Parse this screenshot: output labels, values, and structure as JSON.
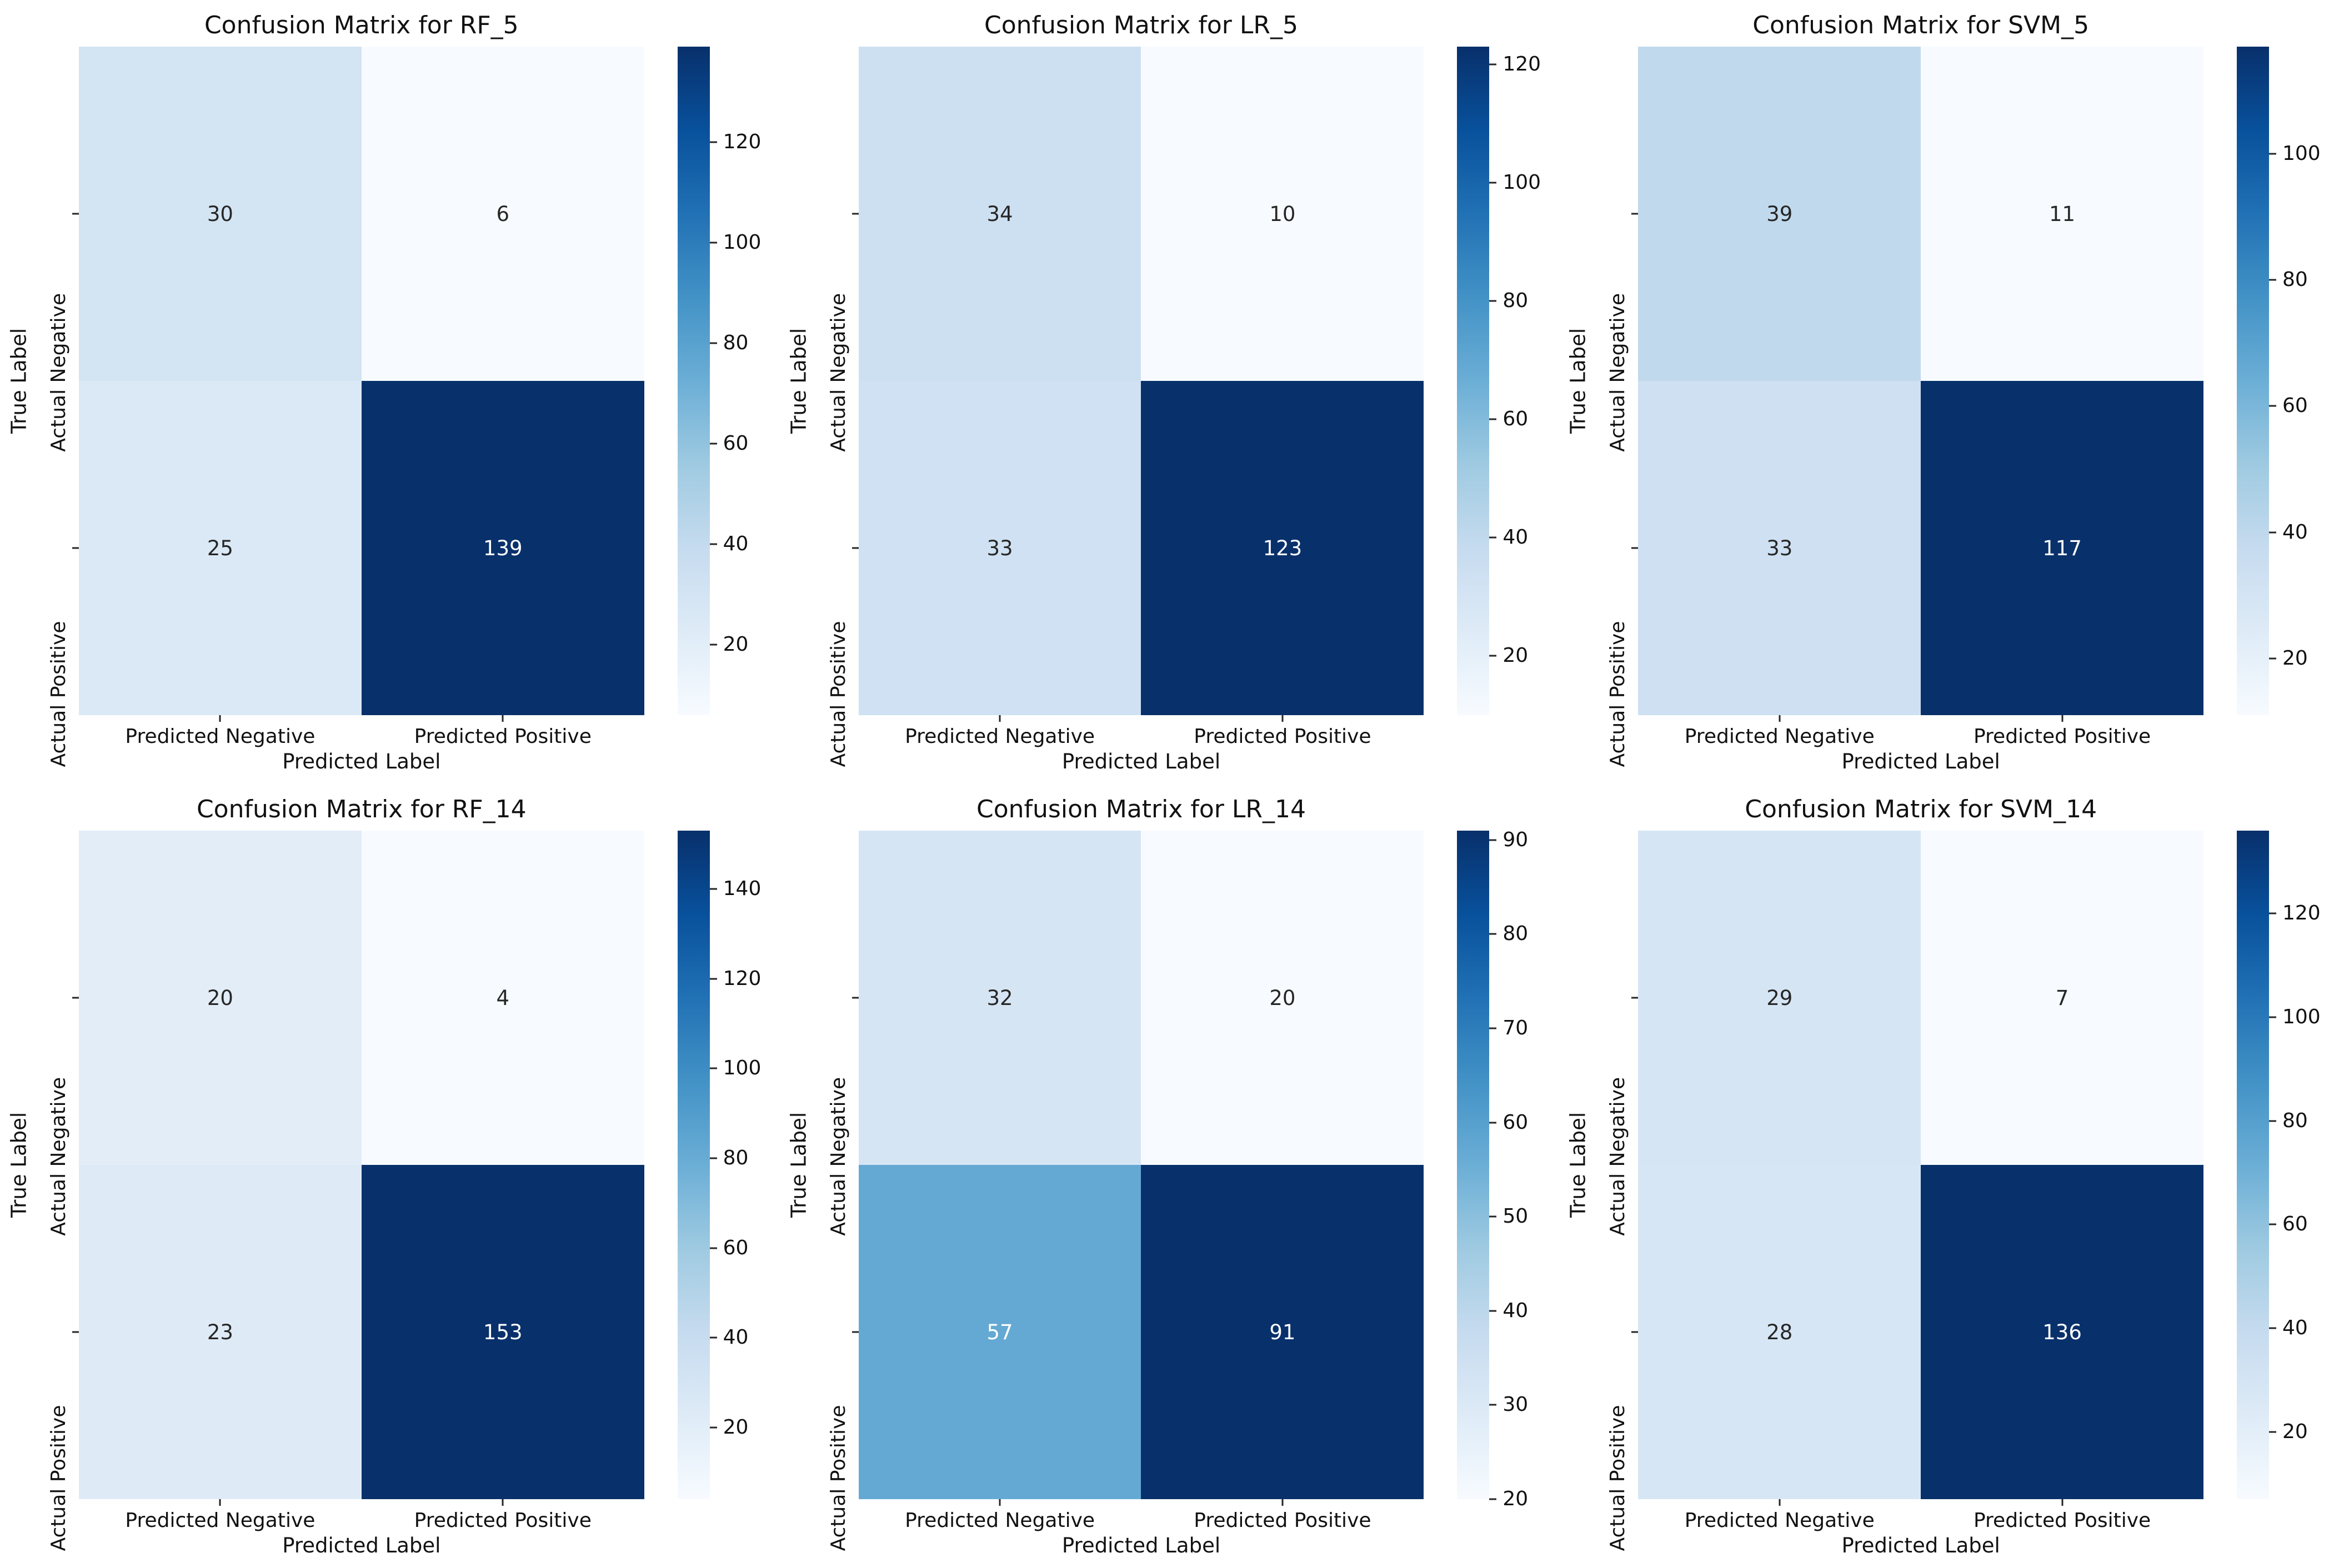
{
  "figure": {
    "background": "#ffffff",
    "colormap_name": "Blues",
    "colormap_stops": [
      "#f7fbff",
      "#deebf7",
      "#c6dbef",
      "#9ecae1",
      "#6baed6",
      "#4292c6",
      "#2171b5",
      "#08519c",
      "#08306b"
    ],
    "annotation_dark_text": "#262626",
    "annotation_light_text": "#ffffff",
    "tick_color": "#262626",
    "text_color": "#111111"
  },
  "chart_data": [
    {
      "type": "heatmap",
      "model": "RF_5",
      "title": "Confusion Matrix for RF_5",
      "xlabel": "Predicted Label",
      "ylabel": "True Label",
      "x_categories": [
        "Predicted Negative",
        "Predicted Positive"
      ],
      "y_categories": [
        "Actual Negative",
        "Actual Positive"
      ],
      "values": [
        [
          30,
          6
        ],
        [
          25,
          139
        ]
      ],
      "vmin": 6,
      "vmax": 139,
      "colorbar_ticks": [
        20,
        40,
        60,
        80,
        100,
        120
      ],
      "legend_position": "right",
      "grid": false
    },
    {
      "type": "heatmap",
      "model": "LR_5",
      "title": "Confusion Matrix for LR_5",
      "xlabel": "Predicted Label",
      "ylabel": "True Label",
      "x_categories": [
        "Predicted Negative",
        "Predicted Positive"
      ],
      "y_categories": [
        "Actual Negative",
        "Actual Positive"
      ],
      "values": [
        [
          34,
          10
        ],
        [
          33,
          123
        ]
      ],
      "vmin": 10,
      "vmax": 123,
      "colorbar_ticks": [
        20,
        40,
        60,
        80,
        100,
        120
      ],
      "legend_position": "right",
      "grid": false
    },
    {
      "type": "heatmap",
      "model": "SVM_5",
      "title": "Confusion Matrix for SVM_5",
      "xlabel": "Predicted Label",
      "ylabel": "True Label",
      "x_categories": [
        "Predicted Negative",
        "Predicted Positive"
      ],
      "y_categories": [
        "Actual Negative",
        "Actual Positive"
      ],
      "values": [
        [
          39,
          11
        ],
        [
          33,
          117
        ]
      ],
      "vmin": 11,
      "vmax": 117,
      "colorbar_ticks": [
        20,
        40,
        60,
        80,
        100
      ],
      "legend_position": "right",
      "grid": false
    },
    {
      "type": "heatmap",
      "model": "RF_14",
      "title": "Confusion Matrix for RF_14",
      "xlabel": "Predicted Label",
      "ylabel": "True Label",
      "x_categories": [
        "Predicted Negative",
        "Predicted Positive"
      ],
      "y_categories": [
        "Actual Negative",
        "Actual Positive"
      ],
      "values": [
        [
          20,
          4
        ],
        [
          23,
          153
        ]
      ],
      "vmin": 4,
      "vmax": 153,
      "colorbar_ticks": [
        20,
        40,
        60,
        80,
        100,
        120,
        140
      ],
      "legend_position": "right",
      "grid": false
    },
    {
      "type": "heatmap",
      "model": "LR_14",
      "title": "Confusion Matrix for LR_14",
      "xlabel": "Predicted Label",
      "ylabel": "True Label",
      "x_categories": [
        "Predicted Negative",
        "Predicted Positive"
      ],
      "y_categories": [
        "Actual Negative",
        "Actual Positive"
      ],
      "values": [
        [
          32,
          20
        ],
        [
          57,
          91
        ]
      ],
      "vmin": 20,
      "vmax": 91,
      "colorbar_ticks": [
        20,
        30,
        40,
        50,
        60,
        70,
        80,
        90
      ],
      "legend_position": "right",
      "grid": false
    },
    {
      "type": "heatmap",
      "model": "SVM_14",
      "title": "Confusion Matrix for SVM_14",
      "xlabel": "Predicted Label",
      "ylabel": "True Label",
      "x_categories": [
        "Predicted Negative",
        "Predicted Positive"
      ],
      "y_categories": [
        "Actual Negative",
        "Actual Positive"
      ],
      "values": [
        [
          29,
          7
        ],
        [
          28,
          136
        ]
      ],
      "vmin": 7,
      "vmax": 136,
      "colorbar_ticks": [
        20,
        40,
        60,
        80,
        100,
        120
      ],
      "legend_position": "right",
      "grid": false
    }
  ]
}
